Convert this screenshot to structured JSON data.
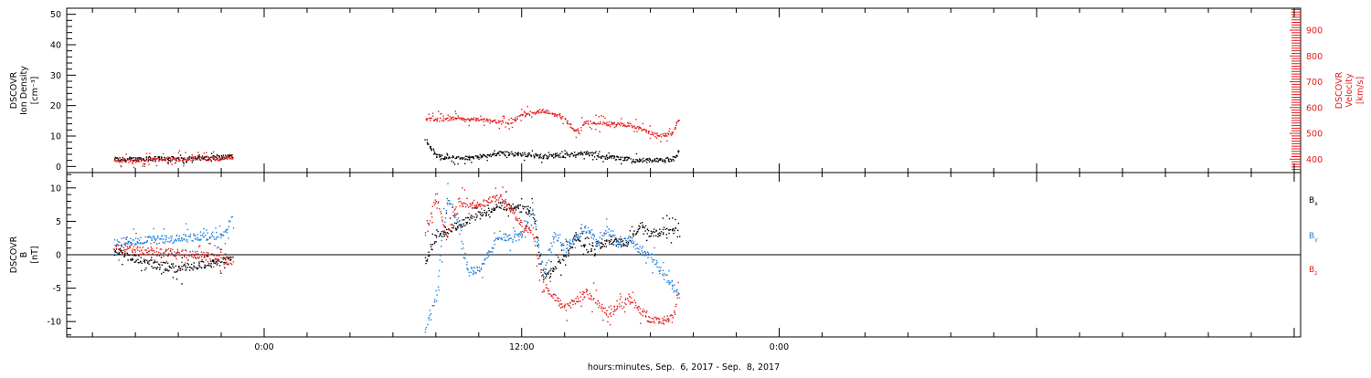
{
  "colors": {
    "black": "#000000",
    "red": "#e41a1c",
    "blue": "#1c7fdb"
  },
  "chart_data": [
    {
      "type": "scatter",
      "panel": "top",
      "ylabel_lines": [
        "DSCOVR",
        "Ion Density",
        "[cm⁻³]"
      ],
      "y2label_lines": [
        "DSCOVR",
        "Velocity",
        "[km/s]"
      ],
      "ylim": [
        -2,
        52
      ],
      "yticks": [
        0,
        10,
        20,
        30,
        40,
        50
      ],
      "y2lim": [
        348,
        985
      ],
      "y2ticks": [
        400,
        500,
        600,
        700,
        800,
        900
      ],
      "series": [
        {
          "axis": "left",
          "color": "red_is_velocity_black_is_density",
          "segments": [
            {
              "x": [
                -7.0,
                -6.0,
                -5.0,
                -4.0,
                -3.0,
                -2.0,
                -1.5
              ],
              "y": [
                2.5,
                2.6,
                2.8,
                2.7,
                3.0,
                3.2,
                3.5
              ]
            },
            {
              "x": [
                7.5,
                8.0,
                9.0,
                10.0,
                11.0,
                12.0,
                13.0,
                14.0,
                15.0,
                16.0,
                17.0,
                18.0,
                19.0,
                19.3
              ],
              "y": [
                9.0,
                3.5,
                2.8,
                3.2,
                4.5,
                4.2,
                3.5,
                3.8,
                4.5,
                3.2,
                2.5,
                2.2,
                2.5,
                5.0
              ]
            }
          ]
        },
        {
          "axis": "right",
          "segments": [
            {
              "x": [
                -7.0,
                -6.0,
                -5.0,
                -4.0,
                -3.0,
                -2.0,
                -1.5
              ],
              "y": [
                395,
                397,
                400,
                402,
                404,
                403,
                406
              ]
            },
            {
              "x": [
                7.5,
                8.0,
                9.0,
                10.0,
                11.0,
                11.5,
                12.0,
                13.0,
                14.0,
                14.5,
                15.0,
                16.0,
                17.0,
                17.5,
                18.0,
                18.5,
                19.0,
                19.3
              ],
              "y": [
                560,
                555,
                560,
                555,
                545,
                545,
                575,
                590,
                560,
                505,
                545,
                540,
                535,
                520,
                505,
                495,
                500,
                555
              ]
            }
          ]
        }
      ]
    },
    {
      "type": "scatter",
      "panel": "bottom",
      "ylabel_lines": [
        "DSCOVR",
        "B",
        "[nT]"
      ],
      "ylim": [
        -12.3,
        12.3
      ],
      "yticks": [
        -10,
        -5,
        0,
        5,
        10
      ],
      "legend": [
        {
          "base": "B",
          "sub": "x",
          "color_key": "black"
        },
        {
          "base": "B",
          "sub": "y",
          "color_key": "blue"
        },
        {
          "base": "B",
          "sub": "z",
          "color_key": "red"
        }
      ],
      "series": [
        {
          "color_key": "black",
          "segments": [
            {
              "x": [
                -7.0,
                -6.0,
                -5.0,
                -4.0,
                -3.0,
                -2.0,
                -1.5
              ],
              "y": [
                0.5,
                -0.5,
                -1.5,
                -2.0,
                -1.5,
                -1.0,
                -0.5
              ]
            },
            {
              "x": [
                7.5,
                8.0,
                9.0,
                10.0,
                11.0,
                12.0,
                12.5,
                13.0,
                14.0,
                14.5,
                15.0,
                16.0,
                17.0,
                17.5,
                18.0,
                18.5,
                19.0,
                19.3
              ],
              "y": [
                -1.0,
                3.0,
                4.5,
                6.0,
                7.5,
                7.0,
                6.5,
                -3.5,
                -0.5,
                3.0,
                1.0,
                2.0,
                2.0,
                4.5,
                3.0,
                3.5,
                4.0,
                3.2
              ]
            }
          ]
        },
        {
          "color_key": "blue",
          "segments": [
            {
              "x": [
                -7.0,
                -6.0,
                -5.0,
                -4.0,
                -3.0,
                -2.0,
                -1.5
              ],
              "y": [
                2.0,
                2.2,
                2.3,
                2.5,
                2.7,
                3.0,
                5.5
              ]
            },
            {
              "x": [
                7.5,
                8.0,
                8.5,
                9.0,
                9.5,
                10.0,
                11.0,
                11.5,
                12.0,
                12.5,
                13.0,
                13.5,
                14.0,
                15.0,
                15.5,
                16.0,
                16.5,
                17.0,
                17.5,
                18.0,
                18.5,
                19.0,
                19.3
              ],
              "y": [
                -11.0,
                -6.0,
                8.5,
                5.5,
                -2.5,
                -2.0,
                3.0,
                2.5,
                3.0,
                7.0,
                -3.0,
                3.0,
                1.0,
                4.0,
                1.5,
                4.0,
                1.5,
                2.5,
                0.5,
                0.0,
                -2.5,
                -4.5,
                -6.0
              ]
            }
          ]
        },
        {
          "color_key": "red",
          "segments": [
            {
              "x": [
                -7.0,
                -6.0,
                -5.0,
                -4.0,
                -3.0,
                -2.0,
                -1.5
              ],
              "y": [
                1.0,
                0.8,
                0.5,
                0.3,
                0.0,
                -0.5,
                -1.0
              ]
            },
            {
              "x": [
                7.5,
                8.0,
                8.5,
                9.0,
                10.0,
                11.0,
                12.0,
                12.5,
                13.0,
                14.0,
                15.0,
                16.0,
                17.0,
                18.0,
                19.0,
                19.3
              ],
              "y": [
                3.0,
                9.0,
                2.5,
                8.0,
                7.5,
                9.0,
                4.5,
                3.5,
                -4.5,
                -8.0,
                -5.5,
                -9.0,
                -6.5,
                -10.0,
                -9.5,
                -6.0
              ]
            }
          ]
        }
      ]
    }
  ],
  "x_axis": {
    "xlim": [
      -9.2,
      48.3
    ],
    "major_ticks": [
      0,
      12,
      24,
      36,
      48
    ],
    "tick_labels": [
      "0:00",
      "12:00",
      "0:00"
    ],
    "tick_label_x": [
      0,
      12,
      24
    ],
    "minor_ticks": [
      -8,
      -6,
      -4,
      -2,
      2,
      4,
      6,
      8,
      10,
      14,
      16,
      18,
      20,
      22,
      26,
      28,
      30,
      32,
      34,
      38,
      40,
      42,
      44,
      46
    ],
    "label": "hours:minutes, Sep.  6, 2017 - Sep.  8, 2017"
  }
}
